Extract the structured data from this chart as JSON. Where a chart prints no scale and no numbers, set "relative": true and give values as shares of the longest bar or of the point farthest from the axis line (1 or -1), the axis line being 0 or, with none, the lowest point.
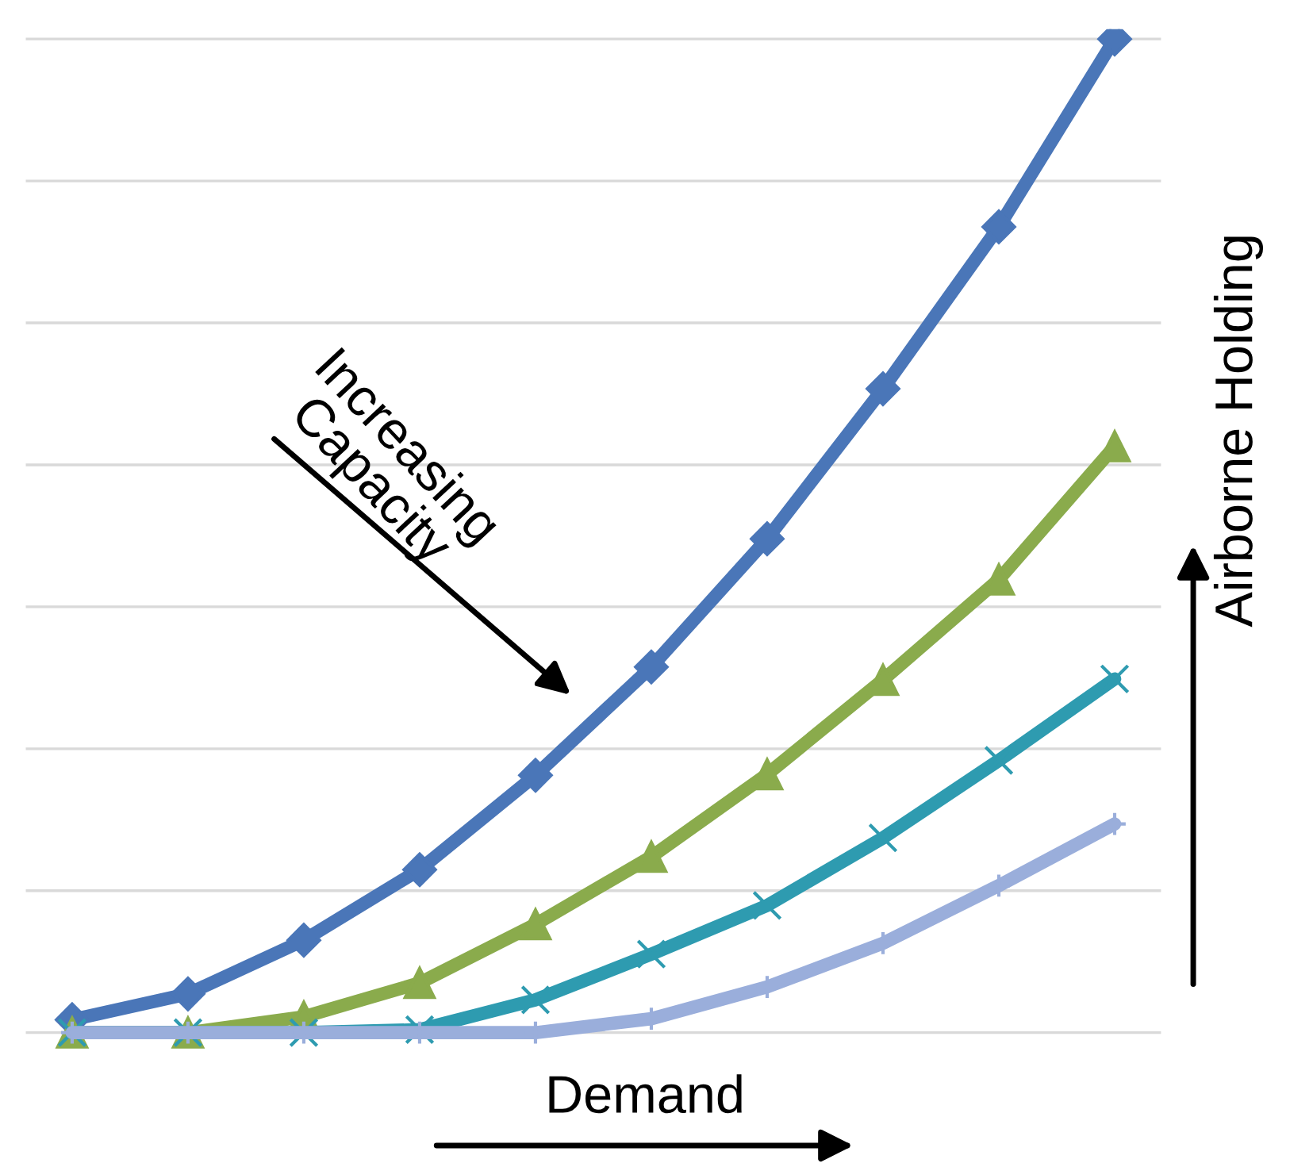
{
  "chart_data": {
    "type": "line",
    "relative": true,
    "grid": "y",
    "legend": false,
    "xlabel": "Demand",
    "ylabel": "Airborne Holding",
    "annotations": [
      "Increasing Capacity"
    ],
    "categories": [
      null,
      null,
      null,
      null,
      null,
      null,
      null,
      null,
      null,
      null
    ],
    "series": [
      {
        "color": "#4a76b8",
        "marker": "diamond",
        "values": [
          0.013,
          0.039,
          0.093,
          0.164,
          0.259,
          0.368,
          0.497,
          0.648,
          0.811,
          1
        ]
      },
      {
        "color": "#8aab4c",
        "marker": "triangle",
        "values": [
          0,
          0,
          0.016,
          0.05,
          0.109,
          0.177,
          0.26,
          0.355,
          0.456,
          0.59
        ]
      },
      {
        "color": "#2e9bb0",
        "marker": "cross",
        "values": [
          0,
          0,
          0,
          0.003,
          0.033,
          0.079,
          0.128,
          0.196,
          0.274,
          0.356
        ]
      },
      {
        "color": "#9aaedb",
        "marker": "plus",
        "values": [
          0,
          0,
          0,
          0,
          0,
          0.014,
          0.046,
          0.09,
          0.148,
          0.21
        ]
      }
    ]
  }
}
